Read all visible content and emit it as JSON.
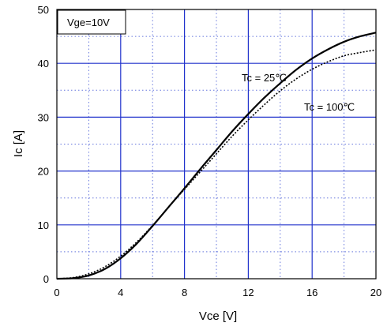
{
  "chart_data": {
    "type": "line",
    "xlabel": "Vce [V]",
    "ylabel": "Ic [A]",
    "xlim": [
      0,
      20
    ],
    "ylim": [
      0,
      50
    ],
    "xticks": [
      0,
      4,
      8,
      12,
      16,
      20
    ],
    "yticks": [
      0,
      10,
      20,
      30,
      40,
      50
    ],
    "x_minor_step": 2,
    "y_minor_step": 5,
    "grid": true,
    "colors": {
      "major_grid": "#2233cc",
      "minor_grid": "#6677dd",
      "line": "#000000"
    },
    "condition_label": "Vge=10V",
    "series": [
      {
        "name": "Tc = 25℃",
        "style": "solid",
        "x": [
          0,
          1,
          2,
          3,
          4,
          5,
          6,
          7,
          8,
          9,
          10,
          11,
          12,
          13,
          14,
          15,
          16,
          17,
          18,
          19,
          20
        ],
        "y": [
          0,
          0.1,
          0.6,
          1.8,
          3.8,
          6.5,
          9.8,
          13.3,
          16.8,
          20.4,
          23.9,
          27.4,
          30.6,
          33.6,
          36.3,
          38.8,
          40.9,
          42.6,
          44.0,
          45.0,
          45.7
        ]
      },
      {
        "name": "Tc = 100℃",
        "style": "dotted",
        "x": [
          0,
          1,
          2,
          3,
          4,
          5,
          6,
          7,
          8,
          9,
          10,
          11,
          12,
          13,
          14,
          15,
          16,
          17,
          18,
          19,
          20
        ],
        "y": [
          0,
          0.2,
          0.9,
          2.2,
          4.2,
          6.8,
          9.9,
          13.3,
          16.6,
          19.9,
          23.2,
          26.5,
          29.5,
          32.3,
          34.9,
          37.1,
          38.9,
          40.3,
          41.4,
          42.0,
          42.5
        ]
      }
    ]
  }
}
